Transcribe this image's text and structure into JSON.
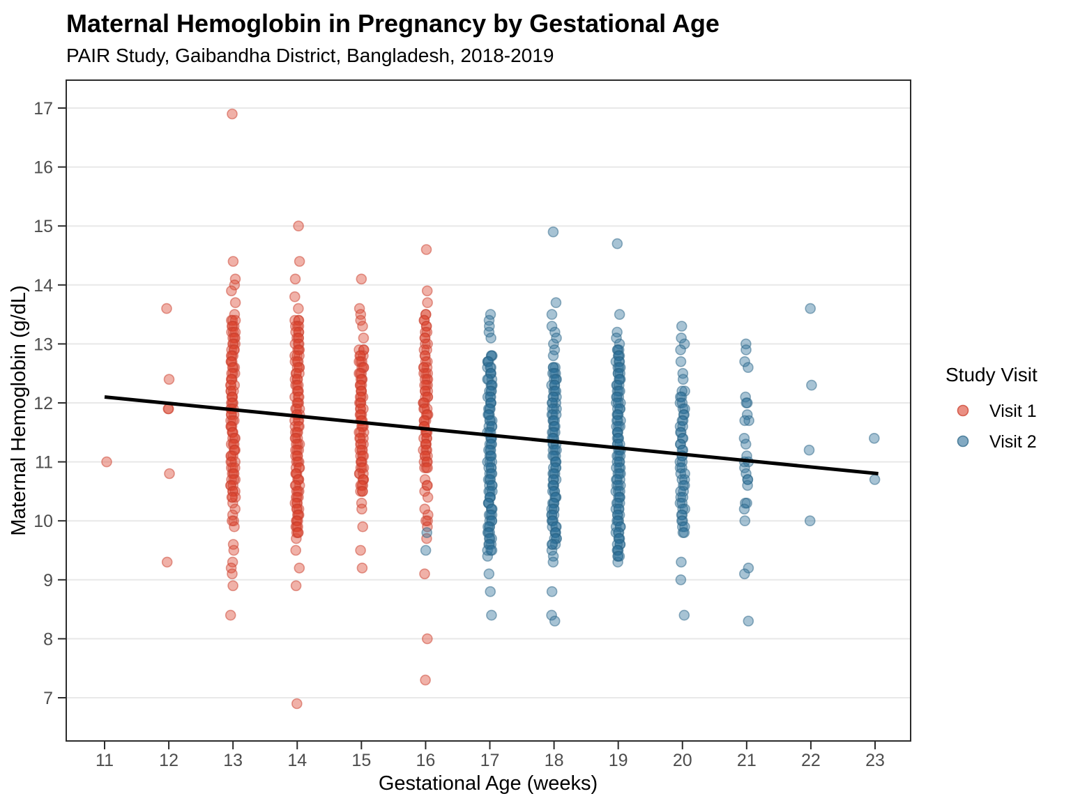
{
  "title": "Maternal Hemoglobin in Pregnancy by Gestational Age",
  "subtitle": "PAIR Study, Gaibandha District, Bangladesh, 2018-2019",
  "legend": {
    "title": "Study Visit",
    "items": [
      {
        "label": "Visit 1",
        "color": "#DC4530",
        "stroke": "#C93D2B"
      },
      {
        "label": "Visit 2",
        "color": "#2E6F99",
        "stroke": "#2A6486"
      }
    ]
  },
  "colors": {
    "visit1_fill": "#DC4530",
    "visit1_stroke": "#C93D2B",
    "visit2_fill": "#2E6F99",
    "visit2_stroke": "#2A6486",
    "grid": "#E8E8E8",
    "tick_label": "#4D4D4D",
    "panel_border": "#2B2B2B",
    "trend": "#000000"
  },
  "chart_data": {
    "type": "scatter",
    "title": "Maternal Hemoglobin in Pregnancy by Gestational Age",
    "subtitle": "PAIR Study, Gaibandha District, Bangladesh, 2018-2019",
    "xlabel": "Gestational Age (weeks)",
    "ylabel": "Maternal Hemoglobin (g/dL)",
    "x_ticks": [
      11,
      12,
      13,
      14,
      15,
      16,
      17,
      18,
      19,
      20,
      21,
      22,
      23
    ],
    "y_ticks": [
      7,
      8,
      9,
      10,
      11,
      12,
      13,
      14,
      15,
      16,
      17
    ],
    "xlim": [
      10.4,
      23.55
    ],
    "ylim": [
      6.27,
      17.45
    ],
    "grid": "horizontal-major-only",
    "legend_position": "right",
    "point_alpha": 0.42,
    "trend_line": {
      "x_start": 11,
      "y_start": 12.1,
      "x_end": 23.05,
      "y_end": 10.8,
      "color": "#000000",
      "width": 5
    },
    "series": [
      {
        "name": "Visit 1",
        "visit": 1,
        "weeks": [
          {
            "week": 11,
            "values": [
              11.0
            ]
          },
          {
            "week": 12,
            "values": [
              13.6,
              12.4,
              11.9,
              11.9,
              10.8,
              9.3
            ]
          },
          {
            "week": 13,
            "values": [
              16.9,
              14.4,
              14.1,
              14.0,
              13.9,
              13.7,
              13.5,
              10.3,
              10.2,
              10.1,
              10.0,
              10.0,
              9.9,
              9.6,
              9.5,
              9.3,
              9.2,
              9.1,
              8.9,
              8.4
            ],
            "dense": [
              {
                "from": 13.4,
                "to": 10.4,
                "count": 3
              }
            ]
          },
          {
            "week": 14,
            "values": [
              15.0,
              14.4,
              14.1,
              13.8,
              13.6,
              9.7,
              9.5,
              9.2,
              8.9,
              6.9
            ],
            "dense": [
              {
                "from": 13.4,
                "to": 9.8,
                "count": 3
              }
            ]
          },
          {
            "week": 15,
            "values": [
              14.1,
              13.6,
              13.5,
              13.4,
              13.3,
              13.1,
              10.3,
              10.2,
              9.9,
              9.5,
              9.2
            ],
            "dense": [
              {
                "from": 12.9,
                "to": 10.5,
                "count": 3
              }
            ]
          },
          {
            "week": 16,
            "values": [
              14.6,
              13.9,
              13.7,
              10.7,
              10.6,
              10.6,
              10.5,
              10.4,
              10.2,
              10.1,
              10.0,
              10.0,
              9.9,
              9.7,
              9.1,
              8.0,
              7.3
            ],
            "dense": [
              {
                "from": 13.5,
                "to": 12.7,
                "count": 2
              },
              {
                "from": 12.6,
                "to": 10.9,
                "count": 3
              }
            ]
          }
        ]
      },
      {
        "name": "Visit 2",
        "visit": 2,
        "weeks": [
          {
            "week": 16,
            "values": [
              9.8,
              9.5
            ]
          },
          {
            "week": 17,
            "values": [
              13.5,
              13.4,
              13.3,
              13.2,
              13.1,
              9.4,
              9.1,
              8.8,
              8.4
            ],
            "dense": [
              {
                "from": 12.8,
                "to": 9.5,
                "count": 3
              }
            ]
          },
          {
            "week": 18,
            "values": [
              14.9,
              13.7,
              13.5,
              13.3,
              13.2,
              13.1,
              13.0,
              12.9,
              12.8,
              9.5,
              9.4,
              9.3,
              8.8,
              8.4,
              8.3
            ],
            "dense": [
              {
                "from": 12.6,
                "to": 9.6,
                "count": 3
              }
            ]
          },
          {
            "week": 19,
            "values": [
              14.7,
              13.5,
              13.2,
              13.1,
              13.0,
              9.3
            ],
            "dense": [
              {
                "from": 12.9,
                "to": 9.4,
                "count": 3
              }
            ]
          },
          {
            "week": 20,
            "values": [
              13.3,
              13.1,
              13.0,
              12.9,
              12.7,
              12.5,
              12.4,
              9.3,
              9.0,
              8.4
            ],
            "dense": [
              {
                "from": 12.2,
                "to": 9.8,
                "count": 2
              }
            ]
          },
          {
            "week": 21,
            "values": [
              13.0,
              12.9,
              12.7,
              12.6,
              12.1,
              12.0,
              12.0,
              11.8,
              11.7,
              11.7,
              11.4,
              11.3,
              11.1,
              11.0,
              11.0,
              10.9,
              10.8,
              10.7,
              10.7,
              10.6,
              10.3,
              10.3,
              10.2,
              10.0,
              9.2,
              9.1,
              8.3
            ]
          },
          {
            "week": 22,
            "values": [
              13.6,
              12.3,
              11.2,
              10.0
            ]
          },
          {
            "week": 23,
            "values": [
              11.4,
              10.7
            ]
          }
        ]
      }
    ]
  }
}
